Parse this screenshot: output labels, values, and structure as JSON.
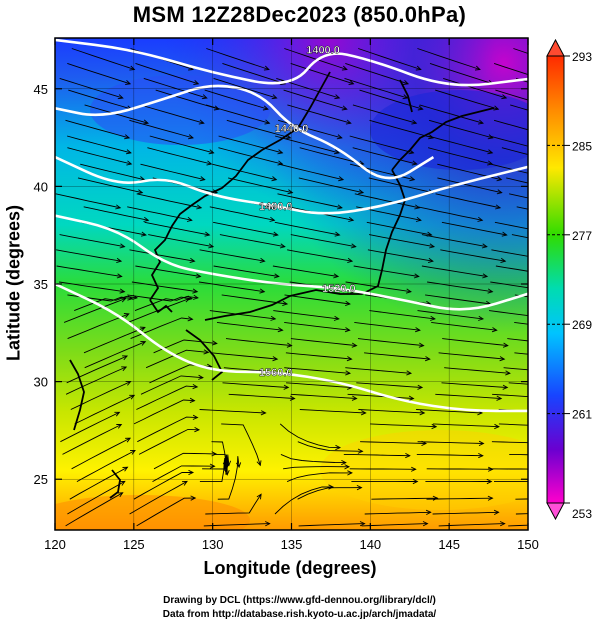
{
  "title": "MSM 12Z28Dec2023 (850.0hPa)",
  "axes": {
    "xlabel": "Longitude (degrees)",
    "ylabel": "Latitude  (degrees)",
    "xticks": [
      "120",
      "125",
      "130",
      "135",
      "140",
      "145",
      "150"
    ],
    "yticks": [
      "25",
      "30",
      "35",
      "40",
      "45"
    ]
  },
  "colorbar": {
    "labels": [
      "293",
      "285",
      "277",
      "269",
      "261",
      "253"
    ],
    "colors": [
      "#ff2200",
      "#ff8800",
      "#ffee00",
      "#22dd00",
      "#00e0a0",
      "#00c8ff",
      "#1040ff",
      "#6600cc",
      "#ff00cc"
    ]
  },
  "contour_labels": [
    "1440.0",
    "1400.0",
    "1480.0",
    "1520.0",
    "1560.0"
  ],
  "credits": {
    "line1": "Drawing by DCL (https://www.gfd-dennou.org/library/dcl/)",
    "line2": "Data from http://database.rish.kyoto-u.ac.jp/arch/jmadata/"
  },
  "chart_data": {
    "type": "heatmap",
    "title": "MSM 12Z28Dec2023 (850.0hPa)",
    "xlabel": "Longitude (degrees)",
    "ylabel": "Latitude  (degrees)",
    "xlim": [
      120,
      150
    ],
    "ylim": [
      22.4,
      47.6
    ],
    "colorbar_range": [
      253,
      293
    ],
    "colorbar_ticks": [
      293,
      285,
      277,
      269,
      261,
      253
    ],
    "contours": [
      {
        "label": "1400.0",
        "points": [
          [
            120,
            47.5
          ],
          [
            125,
            47.0
          ],
          [
            130,
            45.8
          ],
          [
            135,
            45.0
          ],
          [
            137,
            47.0
          ],
          [
            140,
            46.5
          ],
          [
            145,
            45.0
          ],
          [
            150,
            45.5
          ]
        ]
      },
      {
        "label": "1440.0",
        "points": [
          [
            120,
            44.0
          ],
          [
            123,
            43.5
          ],
          [
            127,
            44.5
          ],
          [
            130,
            45.3
          ],
          [
            133,
            44.8
          ],
          [
            135,
            43.0
          ],
          [
            138,
            42.0
          ],
          [
            141,
            40.0
          ],
          [
            144,
            41.5
          ]
        ]
      },
      {
        "label": "1480.0",
        "points": [
          [
            120,
            41.5
          ],
          [
            124,
            40.0
          ],
          [
            127,
            40.5
          ],
          [
            130,
            39.5
          ],
          [
            134,
            39.0
          ],
          [
            137,
            38.5
          ],
          [
            141,
            39.0
          ],
          [
            145,
            40.0
          ],
          [
            150,
            41.0
          ]
        ]
      },
      {
        "label": "1520.0",
        "points": [
          [
            120,
            38.5
          ],
          [
            124,
            37.8
          ],
          [
            127,
            36.0
          ],
          [
            130,
            35.5
          ],
          [
            134,
            35.0
          ],
          [
            138,
            34.8
          ],
          [
            142,
            34.2
          ],
          [
            146,
            33.5
          ],
          [
            150,
            34.5
          ]
        ]
      },
      {
        "label": "1560.0",
        "points": [
          [
            120,
            35.0
          ],
          [
            124,
            33.5
          ],
          [
            127,
            31.5
          ],
          [
            130,
            30.5
          ],
          [
            134,
            30.5
          ],
          [
            138,
            30.0
          ],
          [
            142,
            29.0
          ],
          [
            146,
            28.5
          ],
          [
            150,
            28.5
          ]
        ]
      }
    ],
    "grid": true,
    "legend": "colorbar right"
  }
}
